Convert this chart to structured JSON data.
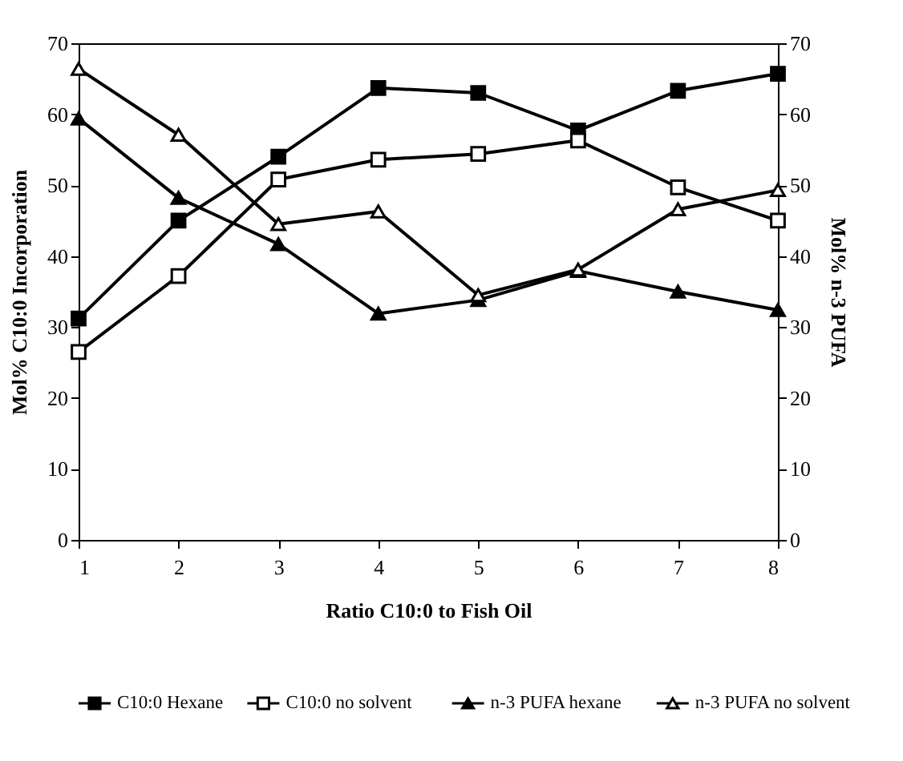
{
  "chart_data": {
    "type": "line",
    "xlabel": "Ratio C10:0 to Fish Oil",
    "ylabel": "Mol% C10:0 Incorporation",
    "y2label": "Mol% n-3 PUFA",
    "x": [
      1,
      2,
      3,
      4,
      5,
      6,
      7,
      8
    ],
    "series": [
      {
        "name": "C10:0 Hexane",
        "color": "#000000",
        "marker": "square",
        "values": [
          31.2,
          45,
          54,
          63.7,
          63,
          57.7,
          63.3,
          65.7
        ]
      },
      {
        "name": "C10:0 no solvent",
        "color": "#ffffff",
        "marker": "square",
        "values": [
          26.5,
          37.2,
          50.8,
          53.6,
          54.4,
          56.3,
          49.7,
          45
        ]
      },
      {
        "name": "n-3  PUFA hexane",
        "color": "#000000",
        "marker": "triangle",
        "axis": "y2",
        "values": [
          59.4,
          48.2,
          41.7,
          31.9,
          33.8,
          37.9,
          35,
          32.4
        ]
      },
      {
        "name": "n-3 PUFA no solvent",
        "color": "#ffffff",
        "marker": "triangle",
        "axis": "y2",
        "values": [
          66.4,
          57.1,
          44.5,
          46.3,
          34.5,
          38.1,
          46.6,
          49.3
        ]
      }
    ],
    "xlim": [
      1,
      8
    ],
    "xticks": [
      1,
      2,
      3,
      4,
      5,
      6,
      7,
      8
    ],
    "ylim": [
      0,
      70
    ],
    "yticks": [
      0,
      10,
      20,
      30,
      40,
      50,
      60,
      70
    ],
    "y2lim": [
      0,
      70
    ],
    "y2ticks": [
      0,
      10,
      20,
      30,
      40,
      50,
      60,
      70
    ],
    "legend": "bottom",
    "grid": false,
    "line_style": "solid"
  }
}
